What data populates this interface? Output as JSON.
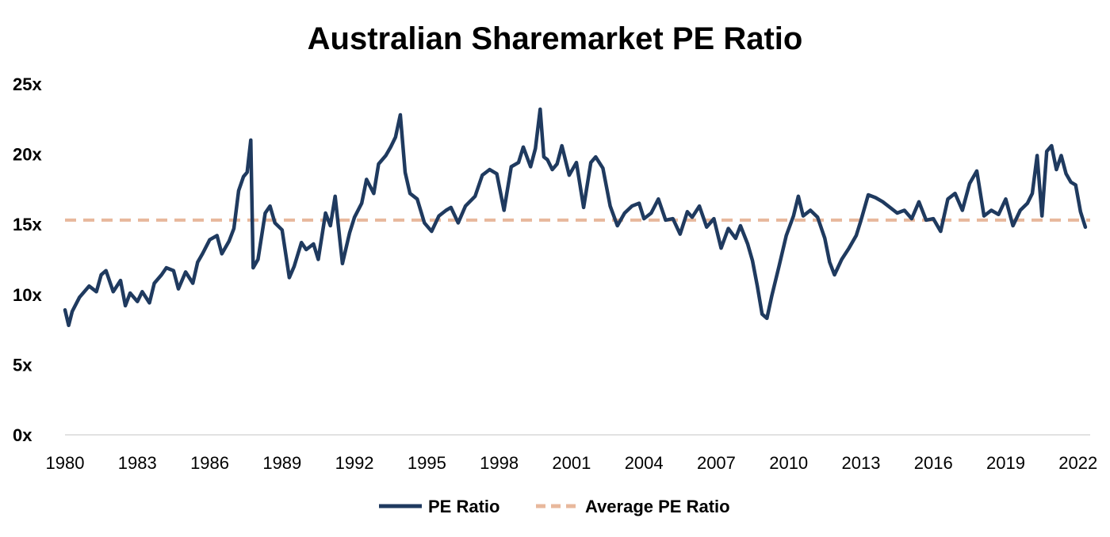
{
  "chart_data": {
    "type": "line",
    "title": "Australian Sharemarket PE Ratio",
    "xlabel": "",
    "ylabel": "",
    "xlim": [
      1980,
      2022.5
    ],
    "ylim": [
      0,
      25
    ],
    "y_ticks": [
      0,
      5,
      10,
      15,
      20,
      25
    ],
    "y_tick_labels": [
      "0x",
      "5x",
      "10x",
      "15x",
      "20x",
      "25x"
    ],
    "x_ticks": [
      1980,
      1983,
      1986,
      1989,
      1992,
      1995,
      1998,
      2001,
      2004,
      2007,
      2010,
      2013,
      2016,
      2019,
      2022
    ],
    "x_tick_labels": [
      "1980",
      "1983",
      "1986",
      "1989",
      "1992",
      "1995",
      "1998",
      "2001",
      "2004",
      "2007",
      "2010",
      "2013",
      "2016",
      "2019",
      "2022"
    ],
    "grid": false,
    "legend": "bottom",
    "colors": {
      "pe": "#1f3a5f",
      "avg": "#e8b89c"
    },
    "series": [
      {
        "name": "PE Ratio",
        "style": "solid",
        "x": [
          1980.0,
          1980.15,
          1980.3,
          1980.6,
          1981.0,
          1981.3,
          1981.5,
          1981.7,
          1982.0,
          1982.3,
          1982.5,
          1982.7,
          1983.0,
          1983.2,
          1983.5,
          1983.7,
          1984.0,
          1984.2,
          1984.5,
          1984.7,
          1985.0,
          1985.3,
          1985.5,
          1985.7,
          1986.0,
          1986.3,
          1986.5,
          1986.8,
          1987.0,
          1987.2,
          1987.4,
          1987.55,
          1987.7,
          1987.8,
          1988.0,
          1988.3,
          1988.5,
          1988.7,
          1989.0,
          1989.3,
          1989.5,
          1989.8,
          1990.0,
          1990.3,
          1990.5,
          1990.8,
          1991.0,
          1991.2,
          1991.5,
          1991.8,
          1992.0,
          1992.3,
          1992.5,
          1992.8,
          1993.0,
          1993.3,
          1993.5,
          1993.7,
          1993.9,
          1994.1,
          1994.3,
          1994.6,
          1994.9,
          1995.2,
          1995.5,
          1995.8,
          1996.0,
          1996.3,
          1996.6,
          1997.0,
          1997.3,
          1997.6,
          1997.9,
          1998.2,
          1998.5,
          1998.8,
          1999.0,
          1999.3,
          1999.5,
          1999.7,
          1999.85,
          2000.0,
          2000.2,
          2000.4,
          2000.6,
          2000.9,
          2001.2,
          2001.5,
          2001.8,
          2002.0,
          2002.3,
          2002.6,
          2002.9,
          2003.2,
          2003.5,
          2003.8,
          2004.0,
          2004.3,
          2004.6,
          2004.9,
          2005.2,
          2005.5,
          2005.8,
          2006.0,
          2006.3,
          2006.6,
          2006.9,
          2007.2,
          2007.5,
          2007.8,
          2008.0,
          2008.3,
          2008.5,
          2008.7,
          2008.9,
          2009.1,
          2009.3,
          2009.6,
          2009.9,
          2010.2,
          2010.4,
          2010.6,
          2010.9,
          2011.2,
          2011.5,
          2011.7,
          2011.9,
          2012.2,
          2012.5,
          2012.8,
          2013.0,
          2013.3,
          2013.6,
          2013.9,
          2014.2,
          2014.5,
          2014.8,
          2015.1,
          2015.4,
          2015.7,
          2016.0,
          2016.3,
          2016.6,
          2016.9,
          2017.2,
          2017.5,
          2017.8,
          2018.1,
          2018.4,
          2018.7,
          2019.0,
          2019.3,
          2019.6,
          2019.9,
          2020.1,
          2020.3,
          2020.5,
          2020.7,
          2020.9,
          2021.1,
          2021.3,
          2021.5,
          2021.7,
          2021.9,
          2022.1,
          2022.3
        ],
        "values": [
          8.9,
          7.8,
          8.8,
          9.8,
          10.6,
          10.2,
          11.4,
          11.7,
          10.2,
          11.0,
          9.2,
          10.1,
          9.5,
          10.2,
          9.4,
          10.8,
          11.4,
          11.9,
          11.7,
          10.4,
          11.6,
          10.8,
          12.3,
          12.9,
          13.9,
          14.2,
          12.9,
          13.8,
          14.7,
          17.4,
          18.4,
          18.7,
          21.0,
          11.9,
          12.5,
          15.8,
          16.3,
          15.1,
          14.6,
          11.2,
          12.0,
          13.7,
          13.2,
          13.6,
          12.5,
          15.8,
          14.9,
          17.0,
          12.2,
          14.4,
          15.5,
          16.5,
          18.2,
          17.2,
          19.3,
          19.9,
          20.5,
          21.2,
          22.8,
          18.7,
          17.2,
          16.8,
          15.1,
          14.5,
          15.6,
          16.0,
          16.2,
          15.1,
          16.3,
          17.0,
          18.5,
          18.9,
          18.6,
          16.0,
          19.1,
          19.4,
          20.5,
          19.1,
          20.4,
          23.2,
          19.8,
          19.6,
          18.9,
          19.3,
          20.6,
          18.5,
          19.4,
          16.2,
          19.4,
          19.8,
          19.0,
          16.3,
          14.9,
          15.8,
          16.3,
          16.5,
          15.4,
          15.8,
          16.8,
          15.3,
          15.4,
          14.3,
          15.9,
          15.5,
          16.3,
          14.8,
          15.4,
          13.3,
          14.7,
          14.0,
          14.9,
          13.6,
          12.4,
          10.6,
          8.6,
          8.3,
          9.9,
          12.0,
          14.2,
          15.6,
          17.0,
          15.6,
          16.0,
          15.5,
          14.0,
          12.3,
          11.4,
          12.5,
          13.3,
          14.2,
          15.3,
          17.1,
          16.9,
          16.6,
          16.2,
          15.8,
          16.0,
          15.4,
          16.6,
          15.3,
          15.4,
          14.5,
          16.8,
          17.2,
          16.0,
          17.9,
          18.8,
          15.6,
          16.0,
          15.7,
          16.8,
          14.9,
          16.0,
          16.5,
          17.2,
          19.9,
          15.6,
          20.2,
          20.6,
          18.9,
          19.9,
          18.6,
          18.0,
          17.8,
          15.9,
          14.8
        ],
        "values_note": ""
      },
      {
        "name": "Average PE Ratio",
        "style": "dashed",
        "x": [
          1980.0,
          2022.5
        ],
        "values": [
          15.3,
          15.3
        ]
      }
    ]
  },
  "legend": {
    "pe_label": "PE Ratio",
    "avg_label": "Average PE Ratio"
  }
}
